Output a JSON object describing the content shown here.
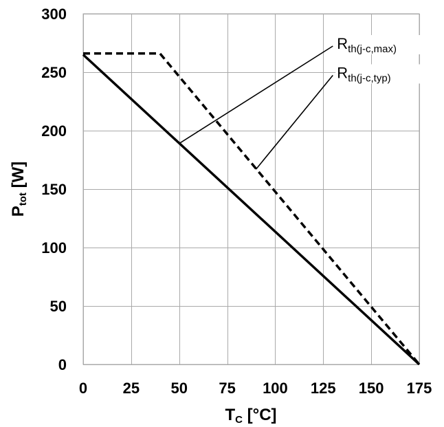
{
  "chart_data": {
    "type": "line",
    "xlabel": {
      "main": "T",
      "sub": "C",
      "rest": " [°C]"
    },
    "ylabel": {
      "main": "P",
      "sub": "tot",
      "rest": " [W]"
    },
    "xlim": [
      0,
      175
    ],
    "ylim": [
      0,
      300
    ],
    "x_ticks": [
      0,
      25,
      50,
      75,
      100,
      125,
      150,
      175
    ],
    "y_ticks": [
      0,
      50,
      100,
      150,
      200,
      250,
      300
    ],
    "grid": true,
    "series": [
      {
        "name": "R_th(j-c,max)",
        "style": "solid",
        "color": "#000000",
        "points": [
          [
            0,
            265
          ],
          [
            175,
            0
          ]
        ]
      },
      {
        "name": "R_th(j-c,typ)",
        "style": "dashed",
        "color": "#000000",
        "points": [
          [
            0,
            266
          ],
          [
            40,
            266
          ],
          [
            175,
            0
          ]
        ]
      }
    ],
    "annotations": [
      {
        "main": "R",
        "sub": "th(j-c,max)",
        "series_index": 0,
        "points_to": [
          50,
          189
        ],
        "text_anchor": [
          125,
          270
        ]
      },
      {
        "main": "R",
        "sub": "th(j-c,typ)",
        "series_index": 1,
        "points_to": [
          90,
          167
        ],
        "text_anchor": [
          125,
          245
        ]
      }
    ]
  }
}
